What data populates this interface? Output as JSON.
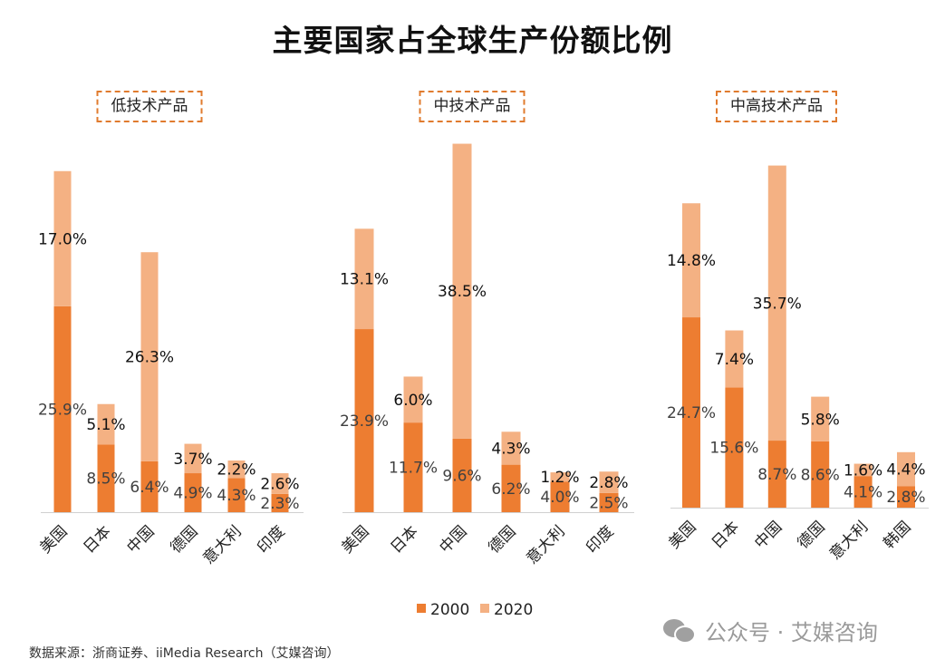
{
  "chart_data": {
    "type": "bar",
    "stacked": true,
    "title": "主要国家占全球生产份额比例",
    "legend": {
      "position": "bottom",
      "entries": [
        "2000",
        "2020"
      ]
    },
    "colors": {
      "2000": "#ED7D31",
      "2020": "#F4B183"
    },
    "unit": "%",
    "panels": [
      {
        "title": "低技术产品",
        "categories": [
          "美国",
          "日本",
          "中国",
          "德国",
          "意大利",
          "印度"
        ],
        "series": [
          {
            "name": "2000",
            "values": [
              25.9,
              8.5,
              6.4,
              4.9,
              4.3,
              2.3
            ]
          },
          {
            "name": "2020",
            "values": [
              17.0,
              5.1,
              26.3,
              3.7,
              2.2,
              2.6
            ]
          }
        ]
      },
      {
        "title": "中技术产品",
        "categories": [
          "美国",
          "日本",
          "中国",
          "德国",
          "意大利",
          "印度"
        ],
        "series": [
          {
            "name": "2000",
            "values": [
              23.9,
              11.7,
              9.6,
              6.2,
              4.0,
              2.5
            ]
          },
          {
            "name": "2020",
            "values": [
              13.1,
              6.0,
              38.5,
              4.3,
              1.2,
              2.8
            ]
          }
        ]
      },
      {
        "title": "中高技术产品",
        "categories": [
          "美国",
          "日本",
          "中国",
          "德国",
          "意大利",
          "韩国"
        ],
        "series": [
          {
            "name": "2000",
            "values": [
              24.7,
              15.6,
              8.7,
              8.6,
              4.1,
              2.8
            ]
          },
          {
            "name": "2020",
            "values": [
              14.8,
              7.4,
              35.7,
              5.8,
              1.6,
              4.4
            ]
          }
        ]
      }
    ]
  },
  "source": "数据来源：浙商证券、iiMedia Research（艾媒咨询）",
  "watermark": "公众号 · 艾媒咨询"
}
